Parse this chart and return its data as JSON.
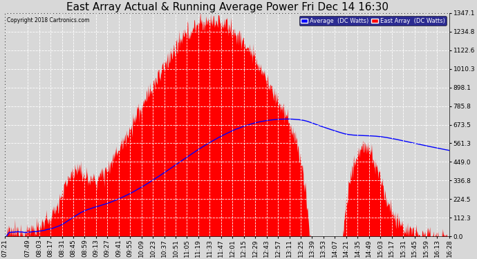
{
  "title": "East Array Actual & Running Average Power Fri Dec 14 16:30",
  "copyright": "Copyright 2018 Cartronics.com",
  "legend_labels": [
    "Average  (DC Watts)",
    "East Array  (DC Watts)"
  ],
  "legend_colors": [
    "blue",
    "red"
  ],
  "ylabel_right_ticks": [
    0.0,
    112.3,
    224.5,
    336.8,
    449.0,
    561.3,
    673.5,
    785.8,
    898.1,
    1010.3,
    1122.6,
    1234.8,
    1347.1
  ],
  "x_tick_labels": [
    "07:21",
    "07:49",
    "08:03",
    "08:17",
    "08:31",
    "08:45",
    "08:59",
    "09:13",
    "09:27",
    "09:41",
    "09:55",
    "10:09",
    "10:23",
    "10:37",
    "10:51",
    "11:05",
    "11:19",
    "11:33",
    "11:47",
    "12:01",
    "12:15",
    "12:29",
    "12:43",
    "12:57",
    "13:11",
    "13:25",
    "13:39",
    "13:53",
    "14:07",
    "14:21",
    "14:35",
    "14:49",
    "15:03",
    "15:17",
    "15:31",
    "15:45",
    "15:59",
    "16:13",
    "16:28"
  ],
  "ymax": 1347.1,
  "background_color": "#d8d8d8",
  "grid_color": "white",
  "area_color": "red",
  "line_color": "blue",
  "title_fontsize": 11,
  "tick_fontsize": 6.5,
  "legend_bg": "#000080"
}
